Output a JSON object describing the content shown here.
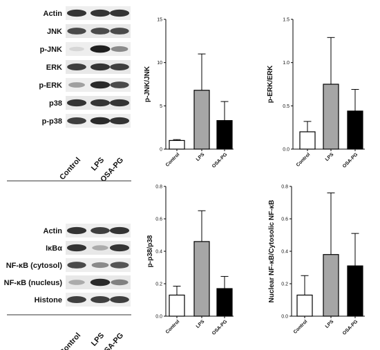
{
  "blots_top": {
    "rows": [
      {
        "label": "Actin",
        "bands": [
          0.85,
          0.85,
          0.85
        ]
      },
      {
        "label": "JNK",
        "bands": [
          0.75,
          0.75,
          0.75
        ]
      },
      {
        "label": "p-JNK",
        "bands": [
          0.1,
          0.95,
          0.45
        ]
      },
      {
        "label": "ERK",
        "bands": [
          0.8,
          0.85,
          0.8
        ]
      },
      {
        "label": "p-ERK",
        "bands": [
          0.35,
          0.9,
          0.75
        ]
      },
      {
        "label": "p38",
        "bands": [
          0.85,
          0.85,
          0.85
        ]
      },
      {
        "label": "p-p38",
        "bands": [
          0.8,
          0.9,
          0.85
        ]
      }
    ],
    "lanes": [
      "Control",
      "LPS",
      "OSA-PG"
    ]
  },
  "blots_bottom": {
    "rows": [
      {
        "label": "Actin",
        "bands": [
          0.85,
          0.8,
          0.85
        ]
      },
      {
        "label": "IκBα",
        "bands": [
          0.85,
          0.3,
          0.85
        ]
      },
      {
        "label": "NF-κB (cytosol)",
        "bands": [
          0.75,
          0.45,
          0.7
        ]
      },
      {
        "label": "NF-κB (nucleus)",
        "bands": [
          0.3,
          0.9,
          0.5
        ]
      },
      {
        "label": "Histone",
        "bands": [
          0.8,
          0.8,
          0.8
        ]
      }
    ],
    "lanes": [
      "Control",
      "LPS",
      "OSA-PG"
    ]
  },
  "chart_data": [
    {
      "type": "bar",
      "categories": [
        "Control",
        "LPS",
        "OSA-PG"
      ],
      "values": [
        1.0,
        6.8,
        3.3
      ],
      "errors": [
        0.1,
        4.2,
        2.2
      ],
      "colors": [
        "#ffffff",
        "#a6a6a6",
        "#000000"
      ],
      "ylabel": "p-JNK/JNK",
      "ylim": [
        0,
        15
      ],
      "yticks": [
        "0",
        "5",
        "10",
        "15"
      ],
      "tick_values": [
        0,
        5,
        10,
        15
      ]
    },
    {
      "type": "bar",
      "categories": [
        "Control",
        "LPS",
        "OSA-PG"
      ],
      "values": [
        0.2,
        0.75,
        0.44
      ],
      "errors": [
        0.12,
        0.54,
        0.25
      ],
      "colors": [
        "#ffffff",
        "#a6a6a6",
        "#000000"
      ],
      "ylabel": "p-ERK/ERK",
      "ylim": [
        0,
        1.5
      ],
      "yticks": [
        "0.0",
        "0.5",
        "1.0",
        "1.5"
      ],
      "tick_values": [
        0,
        0.5,
        1.0,
        1.5
      ]
    },
    {
      "type": "bar",
      "categories": [
        "Control",
        "LPS",
        "OSA-PG"
      ],
      "values": [
        0.13,
        0.46,
        0.17
      ],
      "errors": [
        0.055,
        0.19,
        0.075
      ],
      "colors": [
        "#ffffff",
        "#a6a6a6",
        "#000000"
      ],
      "ylabel": "p-p38/p38",
      "ylim": [
        0,
        0.8
      ],
      "yticks": [
        "0.0",
        "0.2",
        "0.4",
        "0.6",
        "0.8"
      ],
      "tick_values": [
        0,
        0.2,
        0.4,
        0.6,
        0.8
      ]
    },
    {
      "type": "bar",
      "categories": [
        "Control",
        "LPS",
        "OSA-PG"
      ],
      "values": [
        0.13,
        0.38,
        0.31
      ],
      "errors": [
        0.12,
        0.38,
        0.2
      ],
      "colors": [
        "#ffffff",
        "#a6a6a6",
        "#000000"
      ],
      "ylabel": "Nuclear NF-κB/Cytosolic NF-κB",
      "ylim": [
        0,
        0.8
      ],
      "yticks": [
        "0.0",
        "0.2",
        "0.4",
        "0.6",
        "0.8"
      ],
      "tick_values": [
        0,
        0.2,
        0.4,
        0.6,
        0.8
      ]
    }
  ]
}
